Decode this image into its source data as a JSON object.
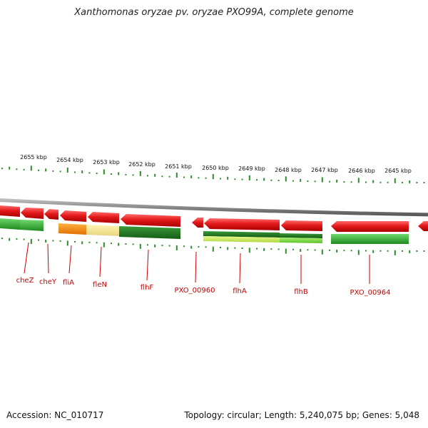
{
  "title": "Xanthomonas oryzae pv. oryzae PXO99A, complete genome",
  "footer": {
    "accession": "Accession: NC_010717",
    "topology": "Topology: circular; Length: 5,240,075 bp; Genes: 5,048"
  },
  "scale": {
    "labels": [
      "2655 kbp",
      "2654 kbp",
      "2653 kbp",
      "2652 kbp",
      "2651 kbp",
      "2650 kbp",
      "2649 kbp",
      "2648 kbp",
      "2647 kbp",
      "2646 kbp",
      "2645 kbp"
    ]
  },
  "genes": [
    "cheZ",
    "cheY",
    "fliA",
    "fleN",
    "flhF",
    "PXO_00960",
    "flhA",
    "flhB",
    "PXO_00964"
  ],
  "colors": {
    "backbone": "#888888",
    "feature_red": "#e41a1c",
    "ticks": "#2e8b2e",
    "gene_label": "#cc0000",
    "expr_green": "#2e9e2e",
    "expr_dark_green": "#1f7a1f",
    "expr_light_green": "#7fd84a",
    "expr_yellow_green": "#c8e860",
    "expr_orange": "#f08a00",
    "expr_pale_yellow": "#f0e090"
  }
}
